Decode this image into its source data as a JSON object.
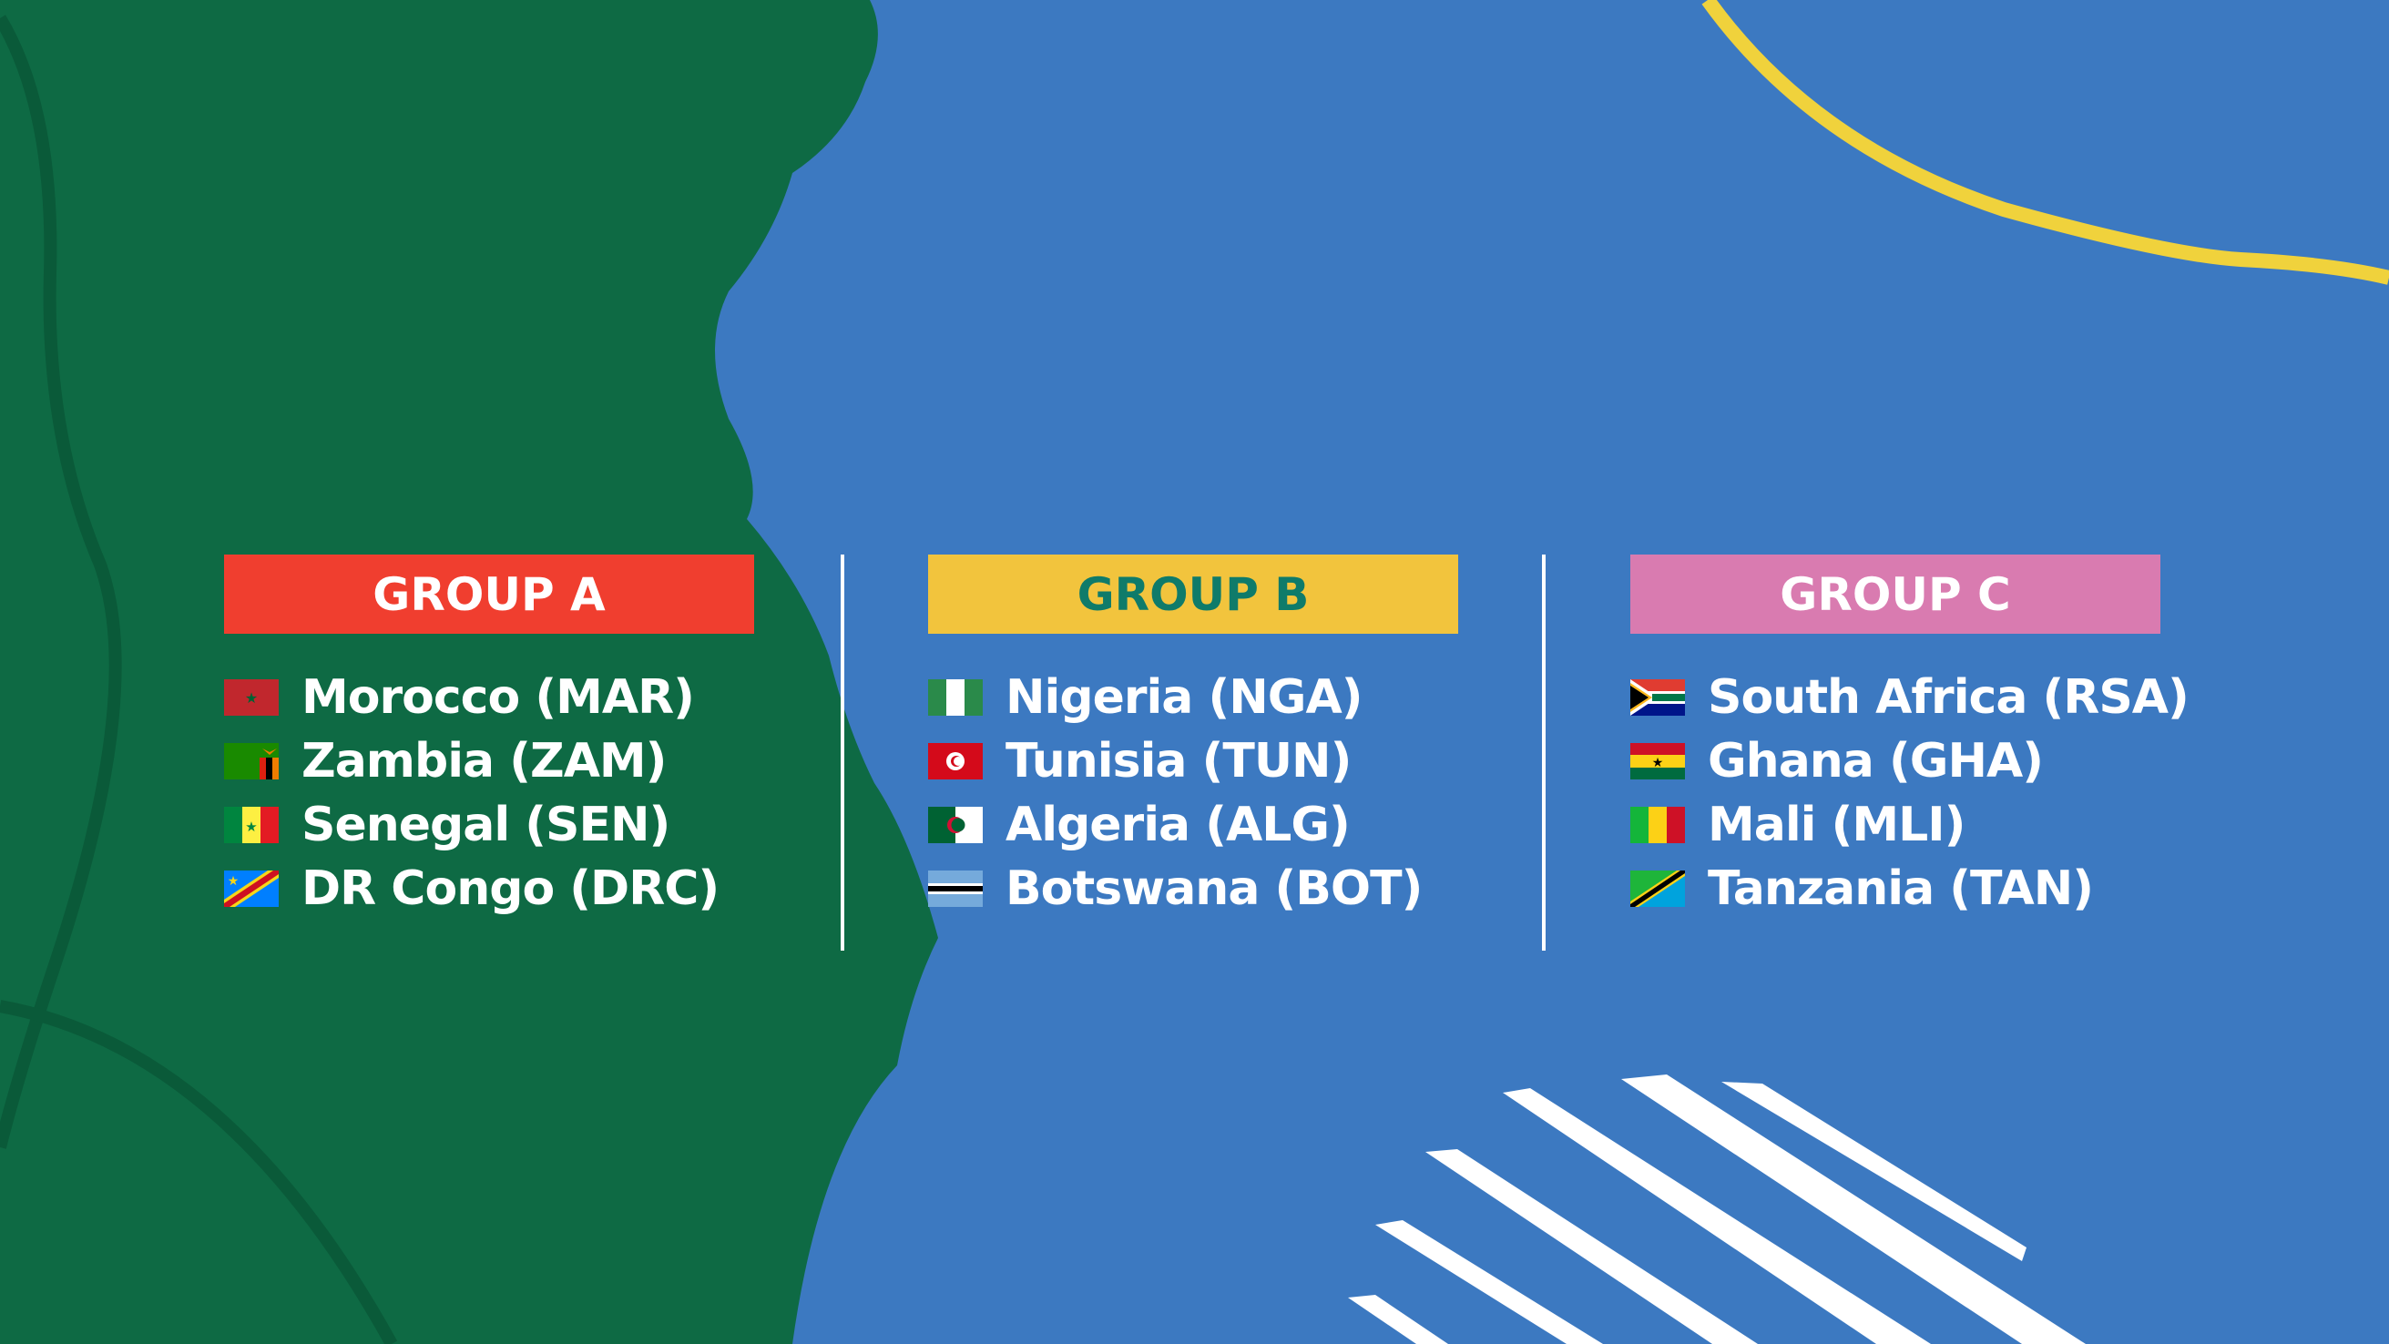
{
  "colors": {
    "green": "#0e6a44",
    "blue": "#3c79c1",
    "yellow_line": "#f0d23c",
    "group_a": "#f03e2f",
    "group_b": "#f2c43d",
    "group_b_text": "#0f7b6a",
    "group_c": "#d97bb0"
  },
  "groups": [
    {
      "title": "GROUP A",
      "teams": [
        {
          "name": "Morocco (MAR)",
          "flag": "morocco-flag"
        },
        {
          "name": "Zambia (ZAM)",
          "flag": "zambia-flag"
        },
        {
          "name": "Senegal (SEN)",
          "flag": "senegal-flag"
        },
        {
          "name": "DR Congo (DRC)",
          "flag": "drcongo-flag"
        }
      ]
    },
    {
      "title": "GROUP B",
      "teams": [
        {
          "name": "Nigeria (NGA)",
          "flag": "nigeria-flag"
        },
        {
          "name": "Tunisia (TUN)",
          "flag": "tunisia-flag"
        },
        {
          "name": "Algeria (ALG)",
          "flag": "algeria-flag"
        },
        {
          "name": "Botswana (BOT)",
          "flag": "botswana-flag"
        }
      ]
    },
    {
      "title": "GROUP C",
      "teams": [
        {
          "name": "South Africa (RSA)",
          "flag": "southafrica-flag"
        },
        {
          "name": "Ghana (GHA)",
          "flag": "ghana-flag"
        },
        {
          "name": "Mali (MLI)",
          "flag": "mali-flag"
        },
        {
          "name": "Tanzania (TAN)",
          "flag": "tanzania-flag"
        }
      ]
    }
  ]
}
